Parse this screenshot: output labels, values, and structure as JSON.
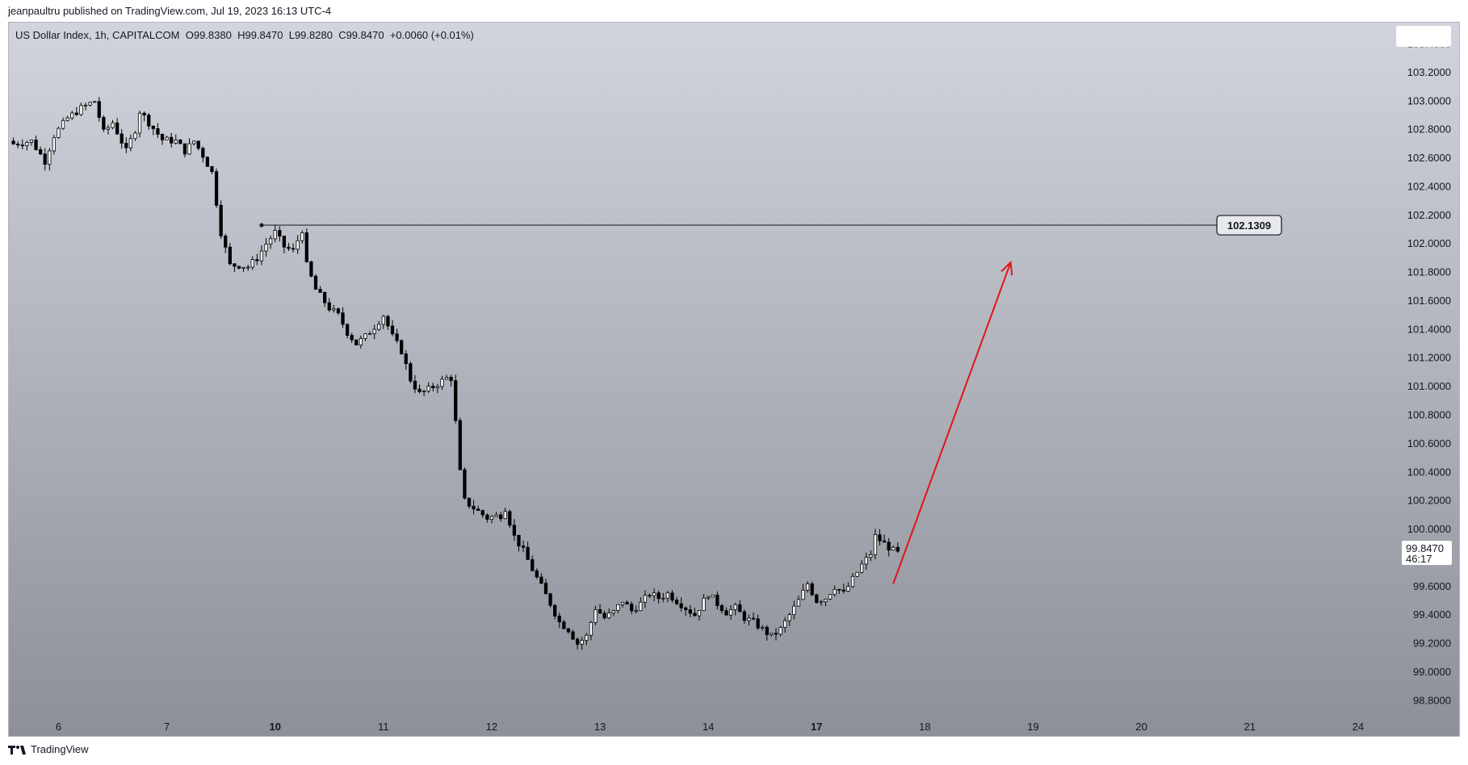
{
  "header": {
    "published_text": "jeanpaultru published on TradingView.com, Jul 19, 2023 16:13 UTC-4"
  },
  "symbol_bar": {
    "title": "US Dollar Index, 1h, CAPITALCOM",
    "open_label": "O",
    "open": "99.8380",
    "high_label": "H",
    "high": "99.8470",
    "low_label": "L",
    "low": "99.8280",
    "close_label": "C",
    "close": "99.8470",
    "change": "+0.0060 (+0.01%)"
  },
  "footer": {
    "logo_icon": "tradingview-logo-icon",
    "brand": "TradingView"
  },
  "colors": {
    "arrow": "#e0141b",
    "bull_fill": "#ffffff",
    "bear_fill": "#000000",
    "candle_outline": "#000000"
  },
  "chart_data": {
    "type": "line",
    "title": "US Dollar Index, 1h, CAPITALCOM",
    "candlestick": true,
    "ylim": [
      98.7,
      103.55
    ],
    "y_ticks": [
      "98.8000",
      "99.0000",
      "99.2000",
      "99.4000",
      "99.6000",
      "99.8000",
      "100.0000",
      "100.2000",
      "100.4000",
      "100.6000",
      "100.8000",
      "101.0000",
      "101.2000",
      "101.4000",
      "101.6000",
      "101.8000",
      "102.0000",
      "102.2000",
      "102.4000",
      "102.6000",
      "102.8000",
      "103.0000",
      "103.2000",
      "103.4000"
    ],
    "x_ticks": [
      {
        "label": "6",
        "index": 10,
        "bold": false
      },
      {
        "label": "7",
        "index": 34,
        "bold": false
      },
      {
        "label": "10",
        "index": 58,
        "bold": true
      },
      {
        "label": "11",
        "index": 82,
        "bold": false
      },
      {
        "label": "12",
        "index": 106,
        "bold": false
      },
      {
        "label": "13",
        "index": 130,
        "bold": false
      },
      {
        "label": "14",
        "index": 154,
        "bold": false
      },
      {
        "label": "17",
        "index": 178,
        "bold": true
      },
      {
        "label": "18",
        "index": 202,
        "bold": false
      },
      {
        "label": "19",
        "index": 226,
        "bold": false
      },
      {
        "label": "20",
        "index": 250,
        "bold": false
      },
      {
        "label": "21",
        "index": 274,
        "bold": false
      },
      {
        "label": "24",
        "index": 298,
        "bold": false
      }
    ],
    "price_anchors": [
      [
        0,
        102.7
      ],
      [
        4,
        102.72
      ],
      [
        7,
        102.58
      ],
      [
        9,
        102.76
      ],
      [
        12,
        102.88
      ],
      [
        15,
        102.95
      ],
      [
        18,
        103.0
      ],
      [
        20,
        102.78
      ],
      [
        22,
        102.85
      ],
      [
        25,
        102.65
      ],
      [
        27,
        102.8
      ],
      [
        28,
        102.93
      ],
      [
        30,
        102.85
      ],
      [
        33,
        102.73
      ],
      [
        36,
        102.72
      ],
      [
        38,
        102.65
      ],
      [
        40,
        102.72
      ],
      [
        42,
        102.62
      ],
      [
        44,
        102.5
      ],
      [
        46,
        102.08
      ],
      [
        48,
        101.85
      ],
      [
        50,
        101.85
      ],
      [
        52,
        101.84
      ],
      [
        54,
        101.9
      ],
      [
        56,
        102.0
      ],
      [
        58,
        102.08
      ],
      [
        60,
        101.98
      ],
      [
        62,
        101.95
      ],
      [
        64,
        102.1
      ],
      [
        65,
        101.85
      ],
      [
        67,
        101.68
      ],
      [
        70,
        101.55
      ],
      [
        72,
        101.5
      ],
      [
        74,
        101.38
      ],
      [
        76,
        101.3
      ],
      [
        78,
        101.35
      ],
      [
        80,
        101.42
      ],
      [
        82,
        101.5
      ],
      [
        84,
        101.35
      ],
      [
        86,
        101.25
      ],
      [
        88,
        101.05
      ],
      [
        90,
        100.95
      ],
      [
        92,
        100.98
      ],
      [
        94,
        101.02
      ],
      [
        96,
        101.06
      ],
      [
        97,
        101.06
      ],
      [
        98,
        100.75
      ],
      [
        99,
        100.4
      ],
      [
        100,
        100.2
      ],
      [
        102,
        100.15
      ],
      [
        105,
        100.08
      ],
      [
        108,
        100.1
      ],
      [
        109,
        100.15
      ],
      [
        111,
        99.95
      ],
      [
        113,
        99.85
      ],
      [
        115,
        99.72
      ],
      [
        117,
        99.6
      ],
      [
        119,
        99.48
      ],
      [
        121,
        99.35
      ],
      [
        123,
        99.3
      ],
      [
        125,
        99.2
      ],
      [
        127,
        99.25
      ],
      [
        129,
        99.45
      ],
      [
        131,
        99.38
      ],
      [
        133,
        99.42
      ],
      [
        135,
        99.5
      ],
      [
        137,
        99.43
      ],
      [
        139,
        99.48
      ],
      [
        141,
        99.55
      ],
      [
        143,
        99.52
      ],
      [
        145,
        99.55
      ],
      [
        147,
        99.5
      ],
      [
        149,
        99.45
      ],
      [
        151,
        99.4
      ],
      [
        153,
        99.5
      ],
      [
        154,
        99.55
      ],
      [
        156,
        99.48
      ],
      [
        158,
        99.42
      ],
      [
        160,
        99.45
      ],
      [
        162,
        99.38
      ],
      [
        164,
        99.35
      ],
      [
        166,
        99.3
      ],
      [
        168,
        99.25
      ],
      [
        170,
        99.3
      ],
      [
        172,
        99.4
      ],
      [
        174,
        99.5
      ],
      [
        176,
        99.62
      ],
      [
        178,
        99.5
      ],
      [
        180,
        99.52
      ],
      [
        182,
        99.6
      ],
      [
        184,
        99.55
      ],
      [
        186,
        99.65
      ],
      [
        188,
        99.75
      ],
      [
        190,
        99.83
      ],
      [
        191,
        99.95
      ],
      [
        193,
        99.9
      ],
      [
        195,
        99.85
      ],
      [
        196,
        99.847
      ]
    ],
    "callout_level": 102.1309,
    "callout_start_index": 55,
    "last_price": "99.8470",
    "countdown": "46:17",
    "annotations": [
      {
        "type": "horizontal_line",
        "price": 102.1309,
        "label": "102.1309"
      },
      {
        "type": "arrow",
        "from": {
          "index": 195,
          "price": 99.62
        },
        "to": {
          "index": 221,
          "price": 101.87
        },
        "color": "#e0141b"
      }
    ]
  }
}
